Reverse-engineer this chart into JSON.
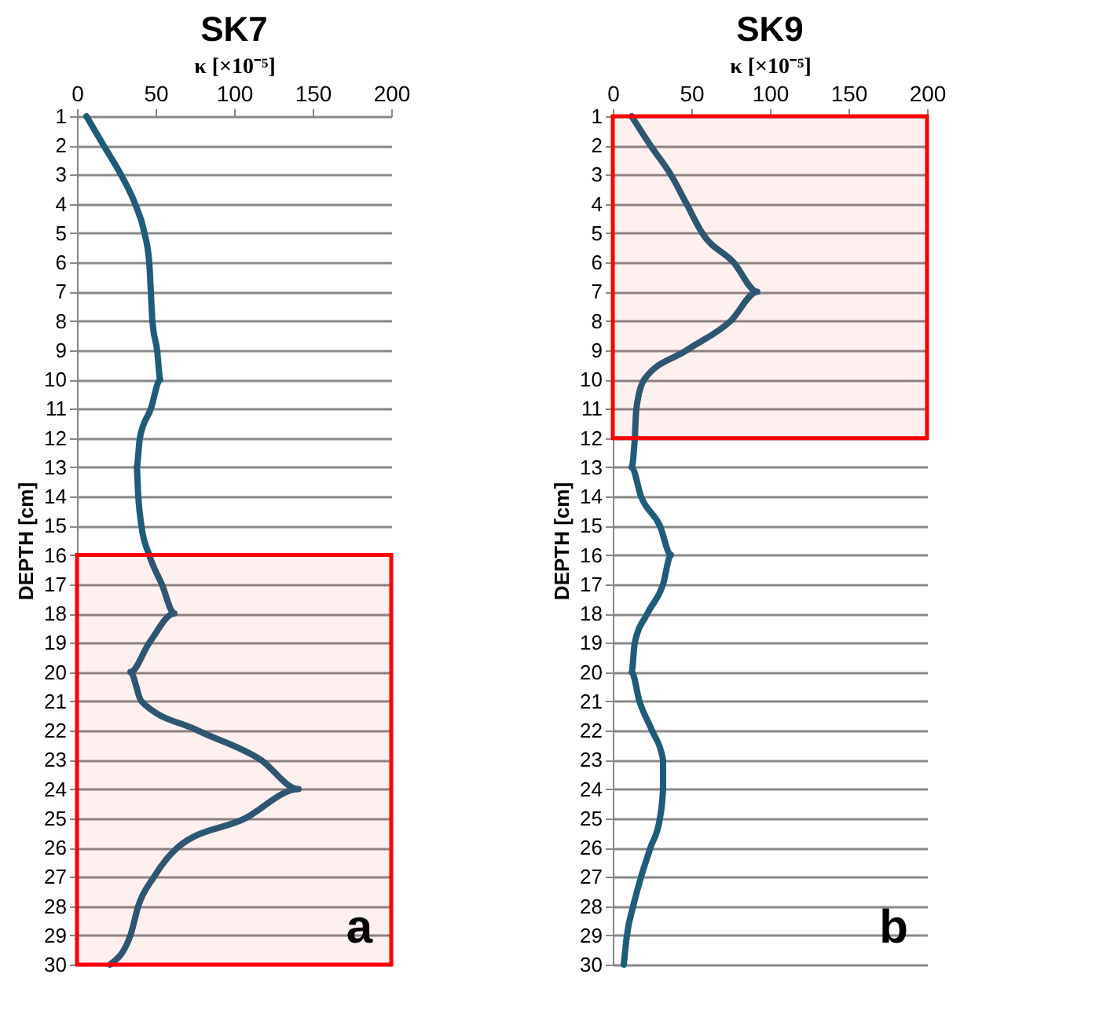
{
  "chart_data": [
    {
      "type": "line",
      "title": "SK7",
      "xlabel": "κ [×10⁻⁵]",
      "ylabel": "DEPTH [cm]",
      "orientation": "horizontal",
      "categories": [
        "1",
        "2",
        "3",
        "4",
        "5",
        "6",
        "7",
        "8",
        "9",
        "10",
        "11",
        "12",
        "13",
        "14",
        "15",
        "16",
        "17",
        "18",
        "19",
        "20",
        "21",
        "22",
        "23",
        "24",
        "25",
        "26",
        "27",
        "28",
        "29",
        "30"
      ],
      "series": [
        {
          "color": "#1f5c7a",
          "values": [
            6,
            17,
            28,
            37,
            43,
            46,
            47,
            48,
            51,
            53,
            47,
            40,
            38,
            39,
            41,
            46,
            54,
            62,
            46,
            34,
            41,
            77,
            117,
            141,
            107,
            64,
            49,
            39,
            34,
            21
          ]
        }
      ],
      "xlim": [
        0,
        200
      ],
      "xticks": [
        0,
        50,
        100,
        150,
        200
      ],
      "grid": "y",
      "marker": "none",
      "line_style": "solid",
      "bands": [
        {
          "axis": "y",
          "from": "16",
          "to": "30",
          "color": "#ff0000"
        }
      ],
      "annotations": [
        "a"
      ]
    },
    {
      "type": "line",
      "title": "SK9",
      "xlabel": "κ [×10⁻⁵]",
      "ylabel": "DEPTH [cm]",
      "orientation": "horizontal",
      "categories": [
        "1",
        "2",
        "3",
        "4",
        "5",
        "6",
        "7",
        "8",
        "9",
        "10",
        "11",
        "12",
        "13",
        "14",
        "15",
        "16",
        "17",
        "18",
        "19",
        "20",
        "21",
        "22",
        "23",
        "24",
        "25",
        "26",
        "27",
        "28",
        "29",
        "30"
      ],
      "series": [
        {
          "color": "#1f5c7a",
          "values": [
            12,
            24,
            37,
            47,
            57,
            77,
            92,
            75,
            47,
            20,
            15,
            14,
            12,
            18,
            30,
            37,
            32,
            22,
            14,
            12,
            17,
            25,
            32,
            32,
            30,
            24,
            18,
            13,
            9,
            7
          ]
        }
      ],
      "xlim": [
        0,
        200
      ],
      "xticks": [
        0,
        50,
        100,
        150,
        200
      ],
      "grid": "y",
      "marker": "none",
      "line_style": "solid",
      "bands": [
        {
          "axis": "y",
          "from": "1",
          "to": "12",
          "color": "#ff0000"
        }
      ],
      "annotations": [
        "b"
      ]
    }
  ]
}
